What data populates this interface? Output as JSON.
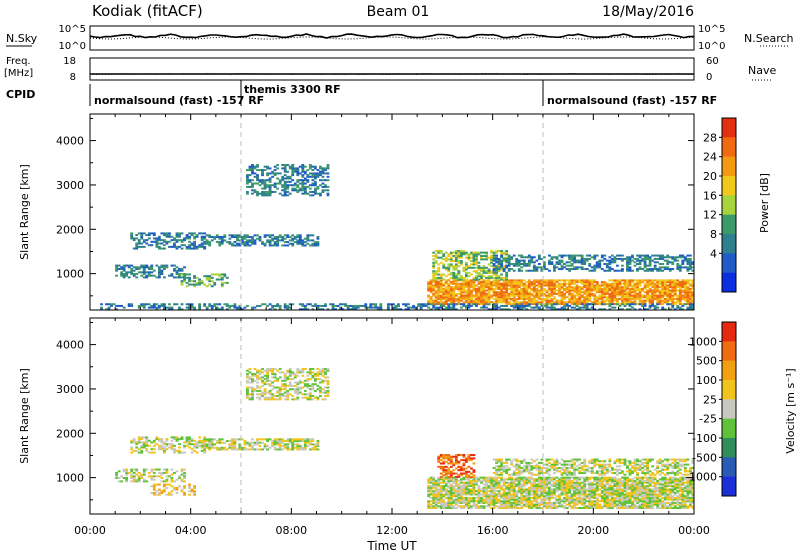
{
  "header": {
    "station": "Kodiak (fitACF)",
    "beam": "Beam 01",
    "date": "18/May/2016"
  },
  "top_panels": {
    "nsky_label": "N.Sky",
    "nsky_ticks": [
      "10^5",
      "10^0"
    ],
    "nsearch_label": "N.Search",
    "nsearch_ticks": [
      "10^5",
      "10^0"
    ],
    "freq_label_1": "Freq.",
    "freq_label_2": "[MHz]",
    "freq_ticks": [
      "18",
      "8"
    ],
    "nave_label": "Nave",
    "nave_ticks": [
      "60",
      "0"
    ],
    "cpid_label": "CPID",
    "cpid_segments": [
      {
        "label": "normalsound (fast) -157 RF",
        "start_hour": 0
      },
      {
        "label": "themis 3300 RF",
        "start_hour": 6
      },
      {
        "label": "normalsound (fast) -157 RF",
        "start_hour": 18
      }
    ]
  },
  "chart_data": [
    {
      "type": "heatmap",
      "name": "power",
      "xlabel": "Time UT",
      "ylabel": "Slant Range [km]",
      "xlim": [
        0,
        24
      ],
      "ylim": [
        180,
        4600
      ],
      "x_ticks": [
        "00:00",
        "04:00",
        "08:00",
        "12:00",
        "16:00",
        "20:00",
        "00:00"
      ],
      "y_ticks": [
        1000,
        2000,
        3000,
        4000
      ],
      "colorbar": {
        "label": "Power [dB]",
        "ticks": [
          "28",
          "24",
          "20",
          "16",
          "12",
          "8",
          "4"
        ],
        "colors": [
          "#0a2ee0",
          "#1f5cc8",
          "#2f7f8e",
          "#3c9a6a",
          "#a7d33c",
          "#f2c81c",
          "#f39a12",
          "#ef6a10",
          "#e53010"
        ]
      },
      "echo_regions": [
        {
          "t0": 0.3,
          "t1": 11.5,
          "r0": 180,
          "r1": 300,
          "level": 2,
          "density": 0.45
        },
        {
          "t0": 1.6,
          "t1": 4.6,
          "r0": 1550,
          "r1": 1900,
          "level": 2,
          "density": 0.5
        },
        {
          "t0": 4.5,
          "t1": 9.0,
          "r0": 1620,
          "r1": 1850,
          "level": 2,
          "density": 0.6
        },
        {
          "t0": 1.0,
          "t1": 3.8,
          "r0": 900,
          "r1": 1200,
          "level": 2,
          "density": 0.5
        },
        {
          "t0": 3.6,
          "t1": 5.4,
          "r0": 700,
          "r1": 1000,
          "level": 3,
          "density": 0.45
        },
        {
          "t0": 6.2,
          "t1": 9.4,
          "r0": 2750,
          "r1": 3450,
          "level": 2,
          "density": 0.5
        },
        {
          "t0": 13.4,
          "t1": 24.0,
          "r0": 300,
          "r1": 850,
          "level": 6,
          "density": 0.85
        },
        {
          "t0": 13.6,
          "t1": 16.5,
          "r0": 850,
          "r1": 1500,
          "level": 4,
          "density": 0.55
        },
        {
          "t0": 16.0,
          "t1": 24.0,
          "r0": 1050,
          "r1": 1400,
          "level": 2,
          "density": 0.55
        },
        {
          "t0": 11.5,
          "t1": 24.0,
          "r0": 180,
          "r1": 300,
          "level": 2,
          "density": 0.5
        }
      ]
    },
    {
      "type": "heatmap",
      "name": "velocity",
      "xlabel": "Time UT",
      "ylabel": "Slant Range [km]",
      "xlim": [
        0,
        24
      ],
      "ylim": [
        180,
        4600
      ],
      "x_ticks": [
        "00:00",
        "04:00",
        "08:00",
        "12:00",
        "16:00",
        "20:00",
        "00:00"
      ],
      "y_ticks": [
        1000,
        2000,
        3000,
        4000
      ],
      "colorbar": {
        "label": "Velocity [m s⁻¹]",
        "ticks": [
          "1000",
          "500",
          "100",
          "25",
          "-25",
          "-100",
          "-500",
          "-1000"
        ],
        "colors": [
          "#1a2fd8",
          "#2a5ab4",
          "#2f8e5c",
          "#5fc23a",
          "#c8c8c0",
          "#f2c31a",
          "#f2a010",
          "#f06c10",
          "#e52a10"
        ]
      },
      "echo_regions": [
        {
          "t0": 1.6,
          "t1": 4.6,
          "r0": 1550,
          "r1": 1900,
          "level": 4,
          "density": 0.5
        },
        {
          "t0": 4.5,
          "t1": 9.0,
          "r0": 1620,
          "r1": 1850,
          "level": 4,
          "density": 0.6
        },
        {
          "t0": 1.0,
          "t1": 3.8,
          "r0": 900,
          "r1": 1200,
          "level": 4,
          "density": 0.5
        },
        {
          "t0": 2.4,
          "t1": 4.2,
          "r0": 600,
          "r1": 850,
          "level": 5,
          "density": 0.45
        },
        {
          "t0": 6.2,
          "t1": 9.4,
          "r0": 2750,
          "r1": 3450,
          "level": 4,
          "density": 0.5
        },
        {
          "t0": 13.4,
          "t1": 24.0,
          "r0": 300,
          "r1": 1000,
          "level": 4,
          "density": 0.85
        },
        {
          "t0": 13.8,
          "t1": 15.2,
          "r0": 1000,
          "r1": 1500,
          "level": 7,
          "density": 0.55
        },
        {
          "t0": 16.0,
          "t1": 24.0,
          "r0": 1050,
          "r1": 1400,
          "level": 4,
          "density": 0.55
        }
      ]
    }
  ]
}
